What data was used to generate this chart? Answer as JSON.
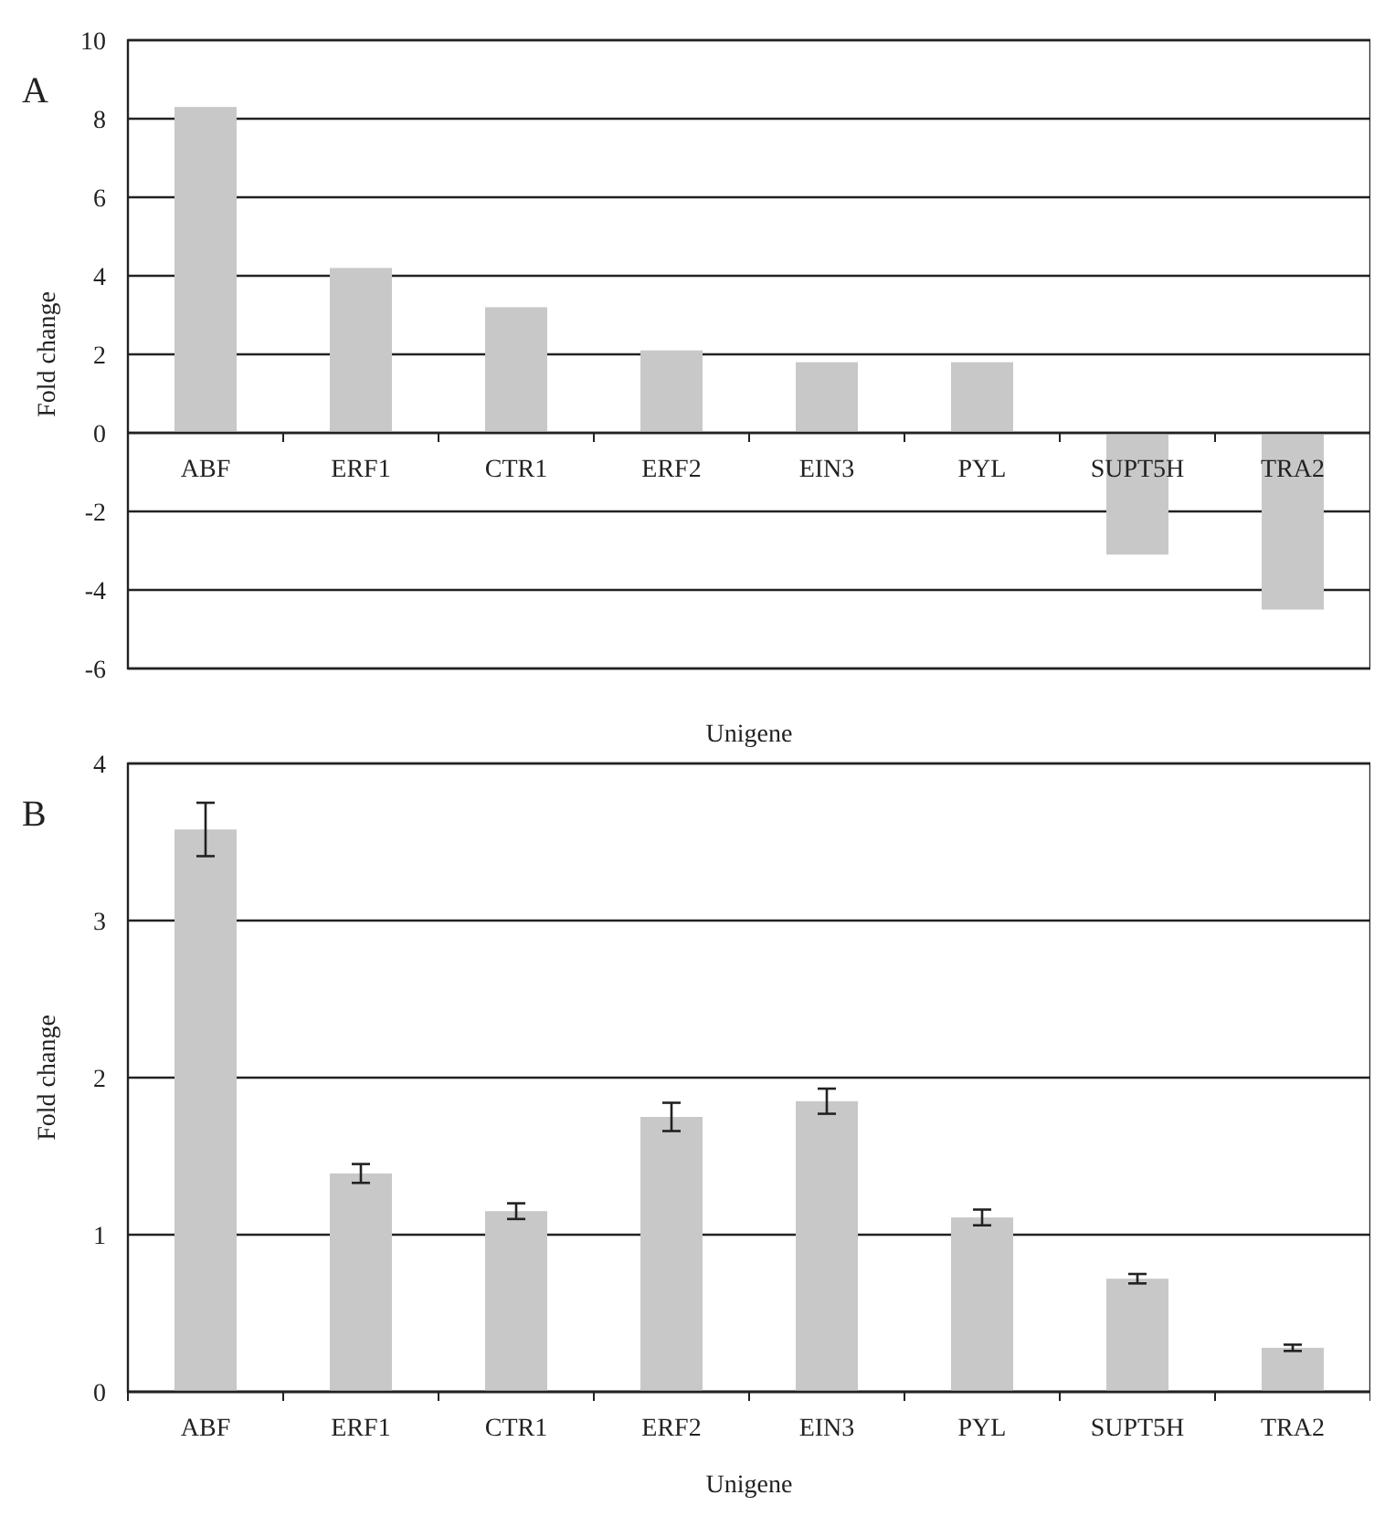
{
  "chart_data": [
    {
      "type": "bar",
      "annotations": [
        "A"
      ],
      "xlabel": "Unigene",
      "ylabel": "Fold change",
      "categories": [
        "ABF",
        "ERF1",
        "CTR1",
        "ERF2",
        "EIN3",
        "PYL",
        "SUPT5H",
        "TRA2"
      ],
      "values": [
        8.3,
        4.2,
        3.2,
        2.1,
        1.8,
        1.8,
        -3.1,
        -4.5
      ],
      "color": "#c8c8c8",
      "ylim": [
        -6,
        10
      ],
      "yticks": [
        -6,
        -4,
        -2,
        0,
        2,
        4,
        6,
        8,
        10
      ],
      "grid": "y"
    },
    {
      "type": "bar",
      "annotations": [
        "B"
      ],
      "xlabel": "Unigene",
      "ylabel": "Fold change",
      "categories": [
        "ABF",
        "ERF1",
        "CTR1",
        "ERF2",
        "EIN3",
        "PYL",
        "SUPT5H",
        "TRA2"
      ],
      "values": [
        3.58,
        1.39,
        1.15,
        1.75,
        1.85,
        1.11,
        0.72,
        0.28
      ],
      "errors": [
        0.17,
        0.06,
        0.05,
        0.09,
        0.08,
        0.05,
        0.03,
        0.02
      ],
      "color": "#c8c8c8",
      "ylim": [
        0,
        4
      ],
      "yticks": [
        0,
        1,
        2,
        3,
        4
      ],
      "grid": "y"
    }
  ]
}
